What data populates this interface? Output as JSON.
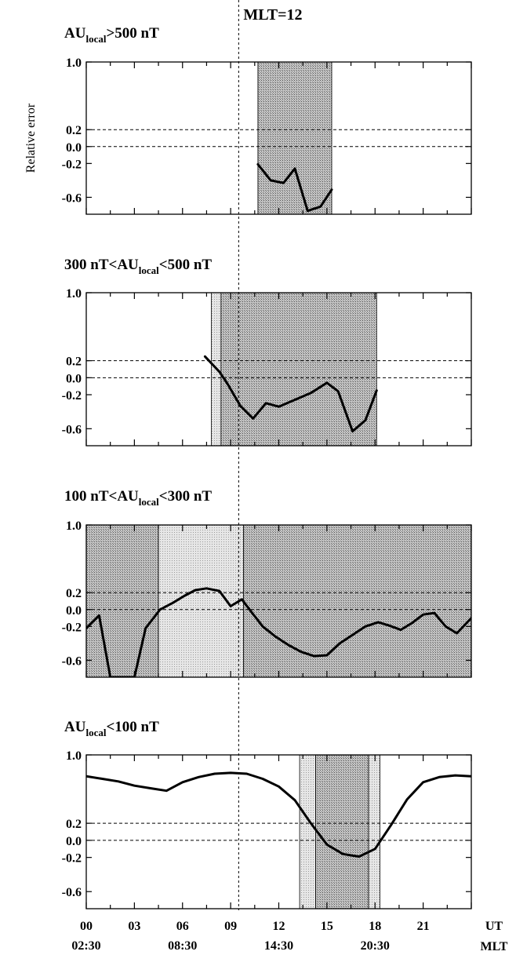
{
  "figure": {
    "mlt_marker_label": "MLT=12",
    "mlt_marker_ut": 9.5,
    "y_axis_label": "Relative error",
    "x_tick_ut_labels": [
      "00",
      "03",
      "06",
      "09",
      "12",
      "15",
      "18",
      "21"
    ],
    "x_tick_mlt_labels": [
      "02:30",
      "08:30",
      "14:30",
      "20:30"
    ],
    "ut_label": "UT",
    "mlt_label": "MLT",
    "colors": {
      "band_light": "#e4e4e4",
      "band_dark": "#b5b5b5",
      "line": "#000000"
    }
  },
  "chart_data": [
    {
      "type": "line",
      "title_parts": {
        "pre": "AU",
        "sub": "local",
        "post": ">500 nT",
        "lead": ""
      },
      "x_label": "UT",
      "xlim": [
        0,
        24
      ],
      "ylim": [
        -0.8,
        1.0
      ],
      "yticks": [
        1.0,
        0.2,
        0.0,
        -0.2,
        -0.6
      ],
      "ytick_labels": [
        "1.0",
        "0.2",
        "0.0",
        "-0.2",
        "-0.6"
      ],
      "ref_lines": [
        0.2,
        0.0
      ],
      "bands": [
        {
          "x0": 10.7,
          "x1": 15.3,
          "shade": "dark"
        }
      ],
      "series": [
        {
          "x": [
            10.7,
            11.5,
            12.3,
            13.0,
            13.8,
            14.6,
            15.3
          ],
          "y": [
            -0.21,
            -0.4,
            -0.43,
            -0.26,
            -0.76,
            -0.71,
            -0.51
          ]
        }
      ]
    },
    {
      "type": "line",
      "title_parts": {
        "pre": "300 nT<AU",
        "sub": "local",
        "post": "<500 nT",
        "lead": ""
      },
      "x_label": "UT",
      "xlim": [
        0,
        24
      ],
      "ylim": [
        -0.8,
        1.0
      ],
      "yticks": [
        1.0,
        0.2,
        0.0,
        -0.2,
        -0.6
      ],
      "ytick_labels": [
        "1.0",
        "0.2",
        "0.0",
        "-0.2",
        "-0.6"
      ],
      "ref_lines": [
        0.2,
        0.0
      ],
      "bands": [
        {
          "x0": 7.8,
          "x1": 8.4,
          "shade": "light"
        },
        {
          "x0": 8.4,
          "x1": 18.1,
          "shade": "dark"
        }
      ],
      "series": [
        {
          "x": [
            7.4,
            8.3,
            8.8,
            9.6,
            10.4,
            11.2,
            12.0,
            13.0,
            14.0,
            15.0,
            15.7,
            16.6,
            17.4,
            18.1
          ],
          "y": [
            0.25,
            0.07,
            -0.07,
            -0.33,
            -0.48,
            -0.3,
            -0.34,
            -0.26,
            -0.18,
            -0.06,
            -0.16,
            -0.63,
            -0.5,
            -0.15
          ]
        }
      ]
    },
    {
      "type": "line",
      "title_parts": {
        "pre": "100 nT<AU",
        "sub": "local",
        "post": "<300 nT",
        "lead": ""
      },
      "x_label": "UT",
      "xlim": [
        0,
        24
      ],
      "ylim": [
        -0.8,
        1.0
      ],
      "yticks": [
        1.0,
        0.2,
        0.0,
        -0.2,
        -0.6
      ],
      "ytick_labels": [
        "1.0",
        "0.2",
        "0.0",
        "-0.2",
        "-0.6"
      ],
      "ref_lines": [
        0.2,
        0.0
      ],
      "bands": [
        {
          "x0": 0.0,
          "x1": 4.5,
          "shade": "dark"
        },
        {
          "x0": 4.5,
          "x1": 9.8,
          "shade": "light"
        },
        {
          "x0": 9.8,
          "x1": 24.0,
          "shade": "dark"
        }
      ],
      "series": [
        {
          "x": [
            0.0,
            0.8,
            1.5,
            3.0,
            3.7,
            4.6,
            5.4,
            6.1,
            6.8,
            7.5,
            8.3,
            9.0,
            9.7,
            10.3,
            11.0,
            11.8,
            12.6,
            13.4,
            14.2,
            15.0,
            15.8,
            16.6,
            17.4,
            18.2,
            18.9,
            19.6,
            20.3,
            21.0,
            21.7,
            22.4,
            23.1,
            24.0
          ],
          "y": [
            -0.22,
            -0.07,
            -0.8,
            -0.8,
            -0.22,
            0.0,
            0.08,
            0.16,
            0.23,
            0.25,
            0.22,
            0.04,
            0.12,
            -0.03,
            -0.2,
            -0.32,
            -0.42,
            -0.5,
            -0.55,
            -0.54,
            -0.4,
            -0.3,
            -0.2,
            -0.15,
            -0.19,
            -0.24,
            -0.16,
            -0.06,
            -0.04,
            -0.2,
            -0.28,
            -0.1
          ]
        }
      ]
    },
    {
      "type": "line",
      "title_parts": {
        "pre": "AU",
        "sub": "local",
        "post": "<100 nT",
        "lead": ""
      },
      "x_label": "UT",
      "xlim": [
        0,
        24
      ],
      "ylim": [
        -0.8,
        1.0
      ],
      "yticks": [
        1.0,
        0.2,
        0.0,
        -0.2,
        -0.6
      ],
      "ytick_labels": [
        "1.0",
        "0.2",
        "0.0",
        "-0.2",
        "-0.6"
      ],
      "ref_lines": [
        0.2,
        0.0
      ],
      "bands": [
        {
          "x0": 13.3,
          "x1": 14.3,
          "shade": "light"
        },
        {
          "x0": 14.3,
          "x1": 17.6,
          "shade": "dark"
        },
        {
          "x0": 17.6,
          "x1": 18.3,
          "shade": "light"
        }
      ],
      "series": [
        {
          "x": [
            0.0,
            1.0,
            2.0,
            3.0,
            4.0,
            5.0,
            6.0,
            7.0,
            8.0,
            9.0,
            10.0,
            11.0,
            12.0,
            13.0,
            14.0,
            15.0,
            16.0,
            17.0,
            18.0,
            19.0,
            20.0,
            21.0,
            22.0,
            23.0,
            24.0
          ],
          "y": [
            0.75,
            0.72,
            0.69,
            0.64,
            0.61,
            0.58,
            0.68,
            0.74,
            0.78,
            0.79,
            0.78,
            0.72,
            0.63,
            0.47,
            0.2,
            -0.05,
            -0.16,
            -0.19,
            -0.1,
            0.18,
            0.48,
            0.68,
            0.74,
            0.76,
            0.75
          ]
        }
      ]
    }
  ]
}
